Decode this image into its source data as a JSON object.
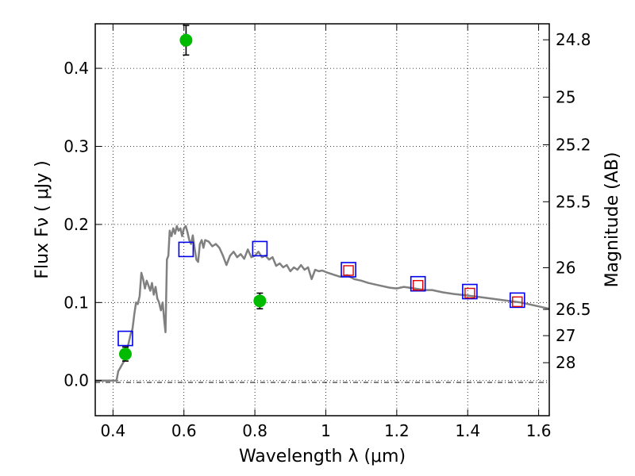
{
  "chart_data": {
    "type": "scatter",
    "xlabel": "Wavelength  λ (μm)",
    "ylabel": "Flux  Fν  ( μJy )",
    "ylabel2": "Magnitude (AB)",
    "xlim": [
      0.35,
      1.63
    ],
    "ylim": [
      -0.045,
      0.457
    ],
    "xticks": [
      0.4,
      0.6,
      0.8,
      1.0,
      1.2,
      1.4,
      1.6
    ],
    "xtick_labels": [
      "0.4",
      "0.6",
      "0.8",
      "1",
      "1.2",
      "1.4",
      "1.6"
    ],
    "yticks": [
      0.0,
      0.1,
      0.2,
      0.3,
      0.4
    ],
    "ytick_labels": [
      "0.0",
      "0.1",
      "0.2",
      "0.3",
      "0.4"
    ],
    "magnitude_ticks": [
      "24.8",
      "25",
      "25.2",
      "25.5",
      "26",
      "26.5",
      "27",
      "28"
    ],
    "grid": true,
    "green_points": [
      {
        "x": 0.435,
        "y": 0.034,
        "err": 0.009
      },
      {
        "x": 0.606,
        "y": 0.436,
        "err": 0.019
      },
      {
        "x": 0.814,
        "y": 0.102,
        "err": 0.01
      }
    ],
    "blue_squares": [
      {
        "x": 0.435,
        "y": 0.054
      },
      {
        "x": 0.606,
        "y": 0.168
      },
      {
        "x": 0.814,
        "y": 0.169
      },
      {
        "x": 1.064,
        "y": 0.142
      },
      {
        "x": 1.26,
        "y": 0.124
      },
      {
        "x": 1.406,
        "y": 0.114
      },
      {
        "x": 1.54,
        "y": 0.103
      }
    ],
    "red_squares": [
      {
        "x": 1.064,
        "y": 0.141
      },
      {
        "x": 1.26,
        "y": 0.122
      },
      {
        "x": 1.406,
        "y": 0.112
      },
      {
        "x": 1.54,
        "y": 0.101
      }
    ],
    "model_curve": {
      "x": [
        0.35,
        0.41,
        0.415,
        0.42,
        0.425,
        0.43,
        0.435,
        0.44,
        0.445,
        0.45,
        0.455,
        0.46,
        0.465,
        0.47,
        0.475,
        0.48,
        0.485,
        0.49,
        0.495,
        0.5,
        0.505,
        0.51,
        0.515,
        0.52,
        0.525,
        0.53,
        0.535,
        0.54,
        0.545,
        0.548,
        0.552,
        0.556,
        0.56,
        0.565,
        0.57,
        0.575,
        0.58,
        0.585,
        0.59,
        0.595,
        0.6,
        0.605,
        0.61,
        0.615,
        0.62,
        0.625,
        0.63,
        0.635,
        0.64,
        0.645,
        0.65,
        0.655,
        0.66,
        0.67,
        0.68,
        0.69,
        0.7,
        0.71,
        0.72,
        0.73,
        0.74,
        0.75,
        0.76,
        0.77,
        0.78,
        0.79,
        0.8,
        0.81,
        0.82,
        0.83,
        0.84,
        0.85,
        0.86,
        0.87,
        0.88,
        0.89,
        0.9,
        0.91,
        0.92,
        0.93,
        0.94,
        0.95,
        0.96,
        0.97,
        0.98,
        0.99,
        1.0,
        1.02,
        1.04,
        1.06,
        1.08,
        1.1,
        1.12,
        1.15,
        1.18,
        1.2,
        1.22,
        1.25,
        1.28,
        1.3,
        1.33,
        1.36,
        1.4,
        1.45,
        1.5,
        1.55,
        1.6,
        1.63
      ],
      "y": [
        0.0,
        0.0,
        0.012,
        0.016,
        0.02,
        0.024,
        0.03,
        0.04,
        0.05,
        0.06,
        0.066,
        0.085,
        0.1,
        0.098,
        0.108,
        0.138,
        0.13,
        0.118,
        0.128,
        0.122,
        0.115,
        0.125,
        0.11,
        0.12,
        0.105,
        0.1,
        0.09,
        0.1,
        0.075,
        0.062,
        0.155,
        0.16,
        0.192,
        0.185,
        0.195,
        0.188,
        0.198,
        0.192,
        0.195,
        0.185,
        0.195,
        0.198,
        0.19,
        0.18,
        0.175,
        0.186,
        0.17,
        0.155,
        0.152,
        0.175,
        0.18,
        0.17,
        0.18,
        0.178,
        0.172,
        0.175,
        0.17,
        0.16,
        0.148,
        0.16,
        0.165,
        0.158,
        0.162,
        0.156,
        0.168,
        0.158,
        0.16,
        0.165,
        0.158,
        0.16,
        0.155,
        0.158,
        0.147,
        0.15,
        0.145,
        0.148,
        0.14,
        0.145,
        0.142,
        0.148,
        0.142,
        0.145,
        0.13,
        0.142,
        0.14,
        0.141,
        0.139,
        0.136,
        0.133,
        0.135,
        0.13,
        0.128,
        0.125,
        0.122,
        0.119,
        0.118,
        0.12,
        0.118,
        0.116,
        0.116,
        0.113,
        0.111,
        0.109,
        0.106,
        0.103,
        0.1,
        0.095,
        0.092
      ]
    },
    "colors": {
      "curve": "#808080",
      "green": "#00bb00",
      "blue": "#0000ee",
      "red": "#dd0000",
      "errorbar": "#000000"
    }
  }
}
